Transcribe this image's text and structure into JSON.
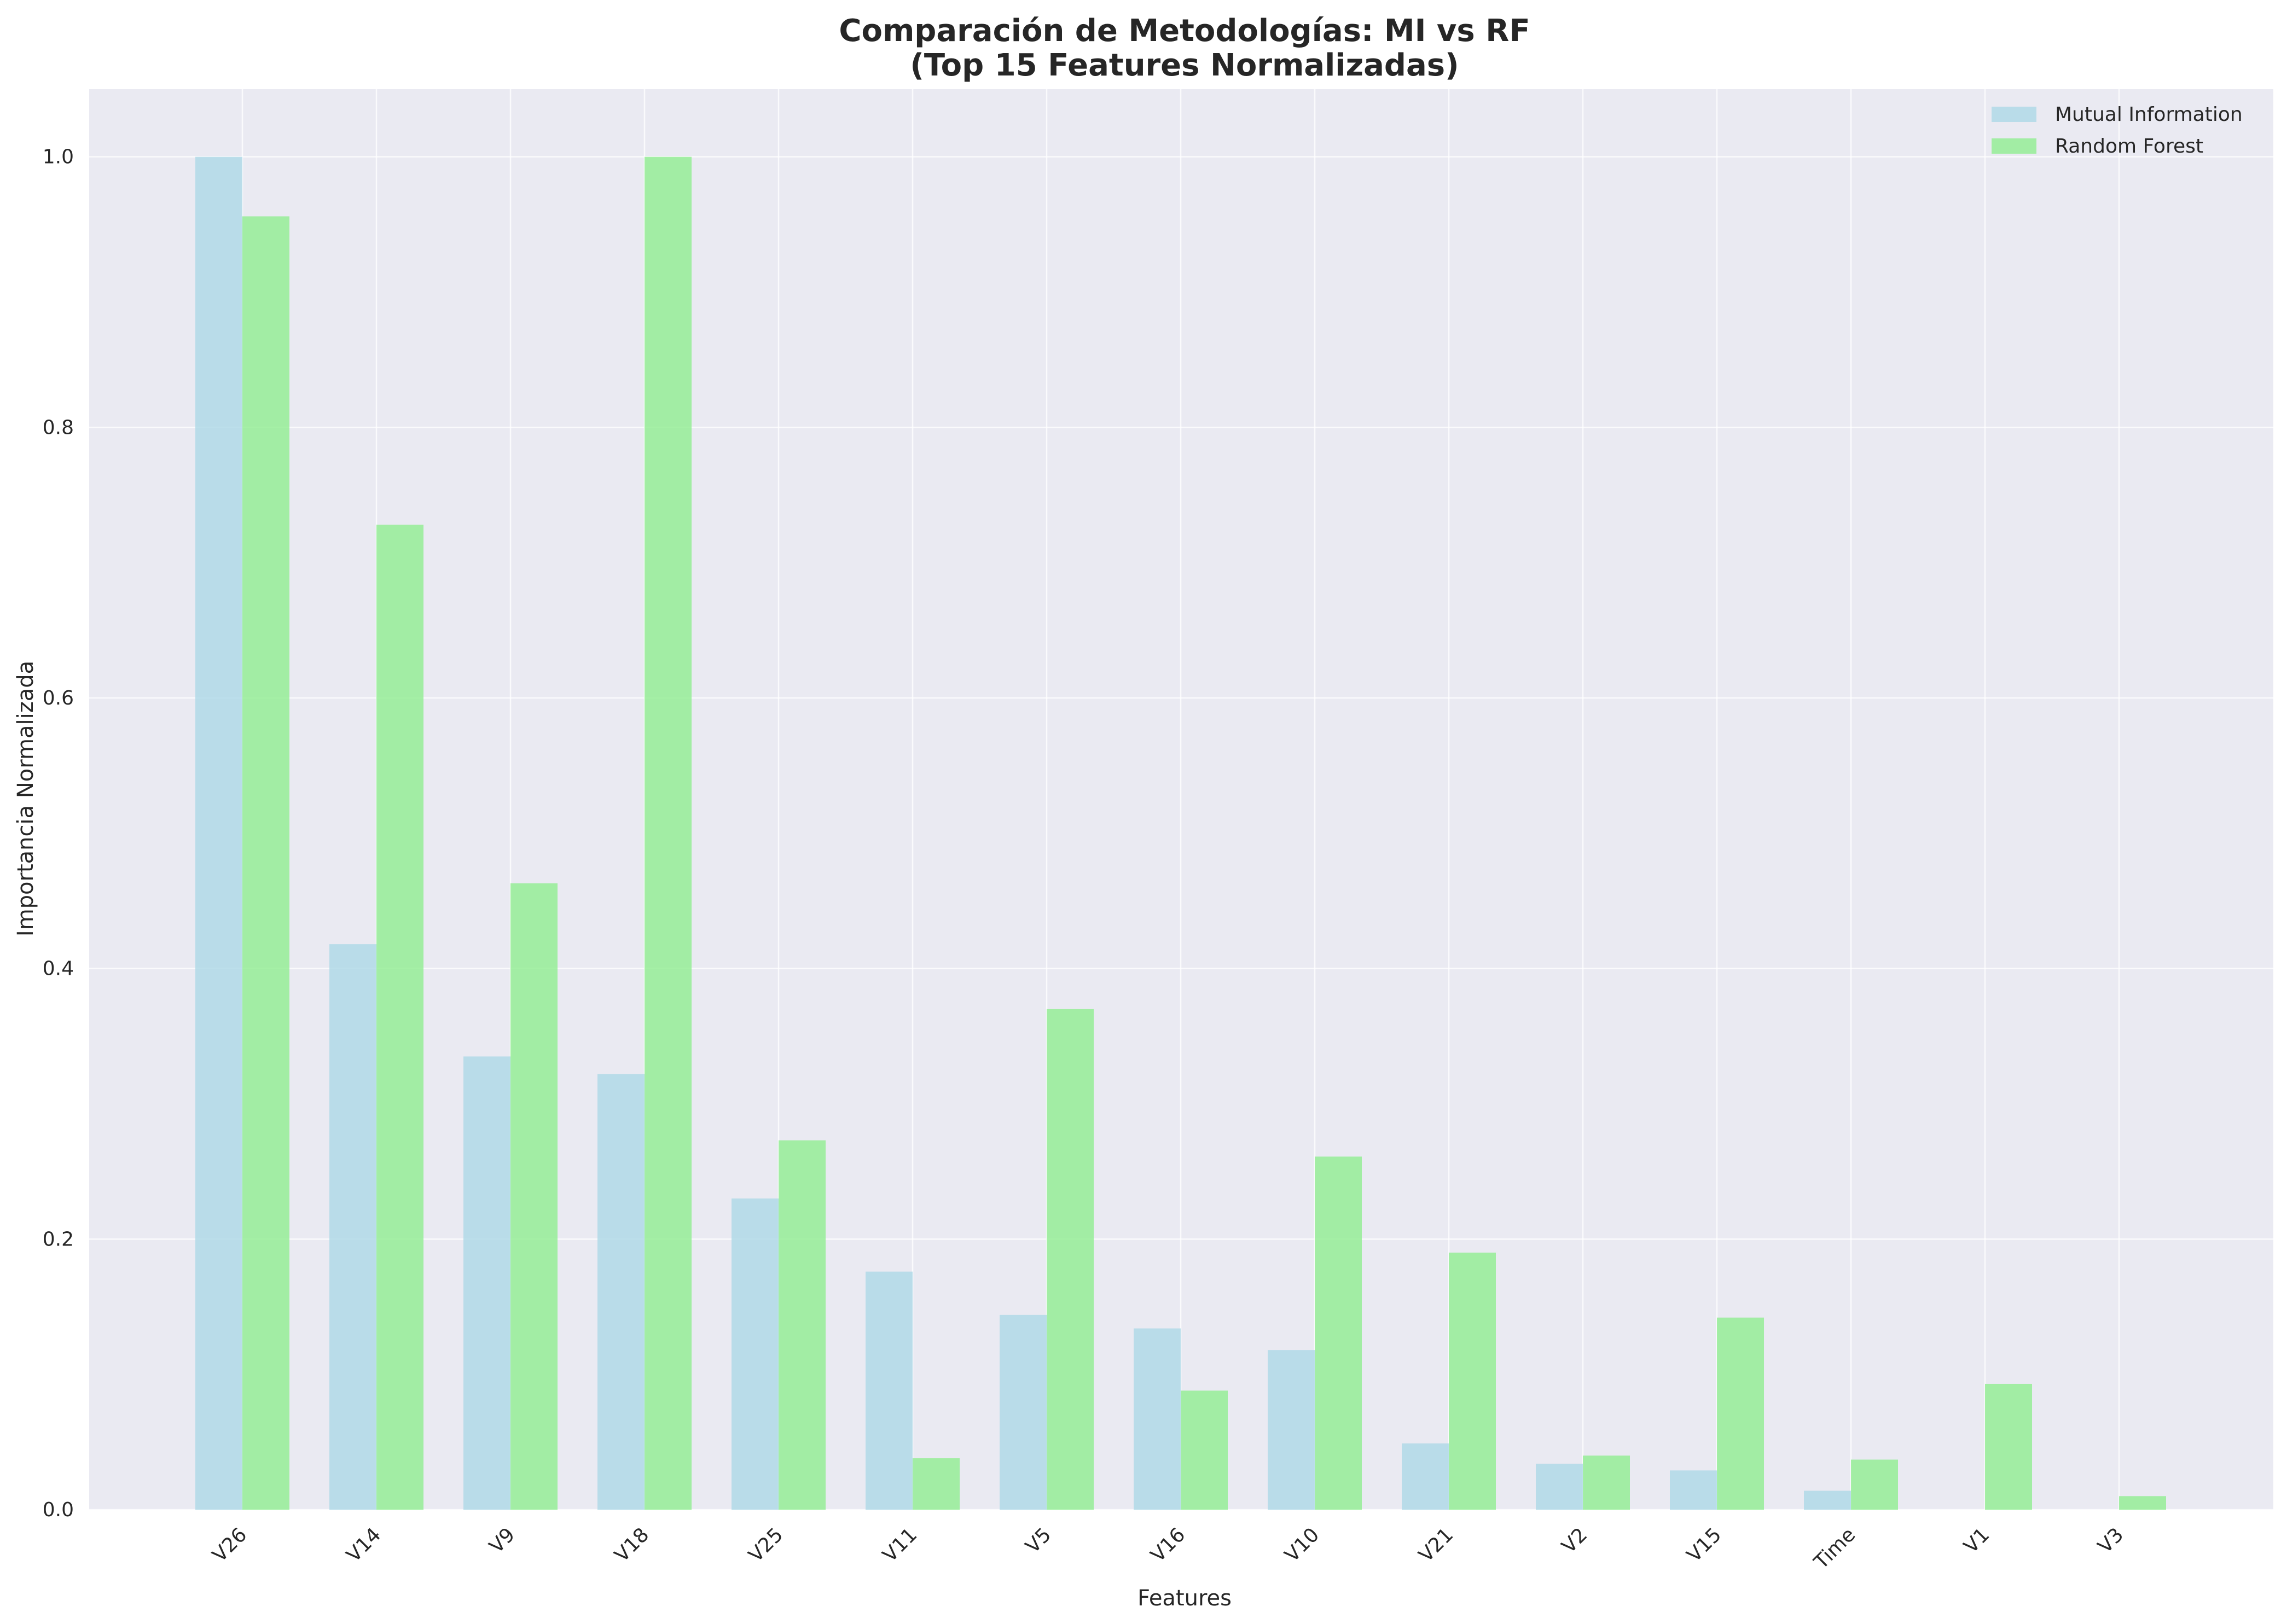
{
  "chart_data": {
    "type": "bar",
    "title": "Comparación de Metodologías: MI vs RF",
    "subtitle": "(Top 15 Features Normalizadas)",
    "xlabel": "Features",
    "ylabel": "Importancia Normalizada",
    "ylim": [
      0,
      1.05
    ],
    "yticks": [
      "0.0",
      "0.2",
      "0.4",
      "0.6",
      "0.8",
      "1.0"
    ],
    "grid": true,
    "legend_position": "top-right",
    "categories": [
      "V26",
      "V14",
      "V9",
      "V18",
      "V25",
      "V11",
      "V5",
      "V16",
      "V10",
      "V21",
      "V2",
      "V15",
      "Time",
      "V1",
      "V3"
    ],
    "series": [
      {
        "name": "Mutual Information",
        "color": "#add8e6",
        "values": [
          1.0,
          0.418,
          0.335,
          0.322,
          0.23,
          0.176,
          0.144,
          0.134,
          0.118,
          0.049,
          0.034,
          0.029,
          0.014,
          0.0,
          0.0
        ]
      },
      {
        "name": "Random Forest",
        "color": "#90ee90",
        "values": [
          0.956,
          0.728,
          0.463,
          1.0,
          0.273,
          0.038,
          0.37,
          0.088,
          0.261,
          0.19,
          0.04,
          0.142,
          0.037,
          0.093,
          0.01
        ]
      }
    ],
    "plot_background": "#eaeaf2",
    "grid_color": "#ffffff"
  }
}
